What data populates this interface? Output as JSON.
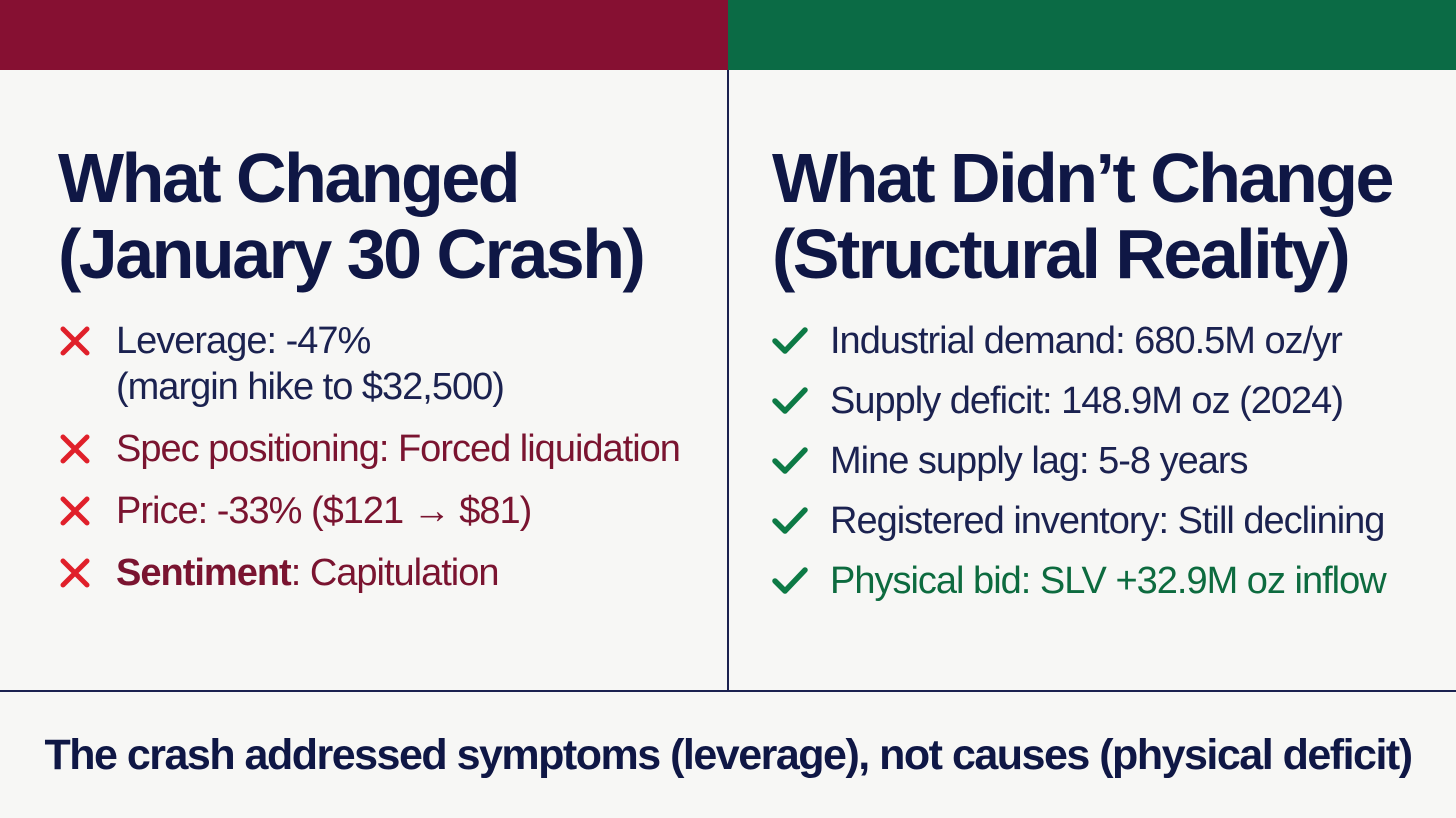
{
  "left": {
    "heading_line1": "What Changed",
    "heading_line2": "(January 30 Crash)",
    "items": [
      {
        "line1": "Leverage: -47%",
        "line2": "(margin hike to $32,500)"
      },
      {
        "text": "Spec positioning: Forced liquidation"
      },
      {
        "text": "Price: -33% ($121 → $81)"
      },
      {
        "label": "Sentiment",
        "rest": ": Capitulation"
      }
    ]
  },
  "right": {
    "heading_line1": "What Didn’t Change",
    "heading_line2": "(Structural Reality)",
    "items": [
      {
        "text": "Industrial demand: 680.5M oz/yr"
      },
      {
        "text": "Supply deficit: 148.9M oz (2024)"
      },
      {
        "text": "Mine supply lag: 5-8 years"
      },
      {
        "text": "Registered inventory: Still declining"
      },
      {
        "text": "Physical bid: SLV +32.9M oz inflow"
      }
    ]
  },
  "footer": "The crash addressed symptoms (leverage), not causes (physical deficit)",
  "colors": {
    "left_accent": "#861032",
    "right_accent": "#0b6b45",
    "navy": "#0f1745",
    "cross": "#e0202a",
    "check": "#0d7a45"
  },
  "icons": {
    "negative": "cross-icon",
    "positive": "check-icon"
  }
}
